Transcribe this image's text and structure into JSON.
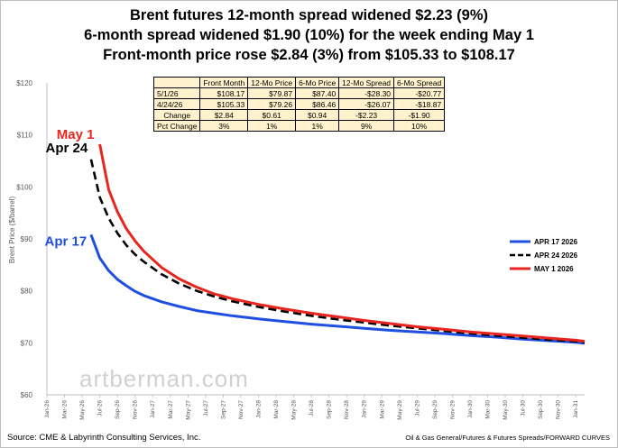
{
  "title_lines": [
    "Brent futures 12-month spread widened $2.23 (9%)",
    "6-month spread widened $1.90 (10%) for the week ending May 1",
    "Front-month price rose $2.84 (3%) from $105.33 to $108.17"
  ],
  "table": {
    "headers": [
      "",
      "Front Month",
      "12-Mo Price",
      "6-Mo Price",
      "12-Mo Spread",
      "6-Mo Spread"
    ],
    "rows": [
      [
        "5/1/26",
        "$108.17",
        "$79.87",
        "$87.40",
        "-$28.30",
        "-$20.77"
      ],
      [
        "4/24/26",
        "$105.33",
        "$79.26",
        "$86.46",
        "-$26.07",
        "-$18.87"
      ],
      [
        "Change",
        "$2.84",
        "$0.61",
        "$0.94",
        "-$2.23",
        "-$1.90"
      ],
      [
        "Pct Change",
        "3%",
        "1%",
        "1%",
        "9%",
        "10%"
      ]
    ]
  },
  "watermark": "artberman.com",
  "source": "Source: CME & Labyrinth Consulting Services, Inc.",
  "path_note": "Oil & Gas General/Futures & Futures Spreads/FORWARD CURVES",
  "chart_data": {
    "type": "line",
    "ylabel": "Brent Price ($/barrel)",
    "ylim": [
      60,
      120
    ],
    "yticks": [
      "$60",
      "$70",
      "$80",
      "$90",
      "$100",
      "$110",
      "$120"
    ],
    "x_tick_labels": [
      "Jan-26",
      "Mar-26",
      "May-26",
      "Jul-26",
      "Sep-26",
      "Nov-26",
      "Jan-27",
      "Mar-27",
      "May-27",
      "Jul-27",
      "Sep-27",
      "Nov-27",
      "Jan-28",
      "Mar-28",
      "May-28",
      "Jul-28",
      "Sep-28",
      "Nov-28",
      "Jan-29",
      "Mar-29",
      "May-29",
      "Jul-29",
      "Sep-29",
      "Nov-29",
      "Jan-30",
      "Mar-30",
      "May-30",
      "Jul-30",
      "Sep-30",
      "Nov-30",
      "Jan-31"
    ],
    "x_first": "2026-01",
    "x_last": "2031-02",
    "grid": false,
    "legend_position": "right",
    "series": [
      {
        "name": "APR 17 2026",
        "curve_label": "Apr 17",
        "color": "#1f4fe0",
        "dash": false,
        "points": [
          [
            "2026-06",
            90.8
          ],
          [
            "2026-07",
            86.3
          ],
          [
            "2026-08",
            83.9
          ],
          [
            "2026-09",
            82.2
          ],
          [
            "2026-10",
            81.0
          ],
          [
            "2026-11",
            79.9
          ],
          [
            "2026-12",
            79.1
          ],
          [
            "2027-02",
            77.9
          ],
          [
            "2027-04",
            77.0
          ],
          [
            "2027-06",
            76.2
          ],
          [
            "2027-08",
            75.7
          ],
          [
            "2027-10",
            75.2
          ],
          [
            "2028-01",
            74.6
          ],
          [
            "2028-04",
            74.1
          ],
          [
            "2028-07",
            73.6
          ],
          [
            "2028-10",
            73.2
          ],
          [
            "2029-01",
            72.8
          ],
          [
            "2029-04",
            72.4
          ],
          [
            "2029-07",
            72.1
          ],
          [
            "2029-10",
            71.8
          ],
          [
            "2030-01",
            71.4
          ],
          [
            "2030-04",
            71.1
          ],
          [
            "2030-07",
            70.7
          ],
          [
            "2030-10",
            70.4
          ],
          [
            "2031-01",
            70.1
          ],
          [
            "2031-02",
            69.9
          ]
        ]
      },
      {
        "name": "APR 24 2026",
        "curve_label": "Apr 24",
        "color": "#000000",
        "dash": true,
        "points": [
          [
            "2026-06",
            105.3
          ],
          [
            "2026-07",
            98.0
          ],
          [
            "2026-08",
            94.0
          ],
          [
            "2026-09",
            91.1
          ],
          [
            "2026-10",
            88.8
          ],
          [
            "2026-11",
            87.0
          ],
          [
            "2026-12",
            85.6
          ],
          [
            "2027-02",
            83.2
          ],
          [
            "2027-04",
            81.4
          ],
          [
            "2027-06",
            80.0
          ],
          [
            "2027-08",
            78.9
          ],
          [
            "2027-10",
            78.0
          ],
          [
            "2028-01",
            76.9
          ],
          [
            "2028-04",
            76.0
          ],
          [
            "2028-07",
            75.2
          ],
          [
            "2028-10",
            74.5
          ],
          [
            "2029-01",
            73.9
          ],
          [
            "2029-04",
            73.3
          ],
          [
            "2029-07",
            72.8
          ],
          [
            "2029-10",
            72.3
          ],
          [
            "2030-01",
            71.8
          ],
          [
            "2030-04",
            71.4
          ],
          [
            "2030-07",
            71.0
          ],
          [
            "2030-10",
            70.6
          ],
          [
            "2031-01",
            70.3
          ],
          [
            "2031-02",
            70.1
          ]
        ]
      },
      {
        "name": "MAY 1 2026",
        "curve_label": "May 1",
        "color": "#e8251f",
        "dash": false,
        "points": [
          [
            "2026-07",
            108.2
          ],
          [
            "2026-08",
            99.5
          ],
          [
            "2026-09",
            95.2
          ],
          [
            "2026-10",
            92.0
          ],
          [
            "2026-11",
            89.6
          ],
          [
            "2026-12",
            87.6
          ],
          [
            "2027-02",
            84.5
          ],
          [
            "2027-04",
            82.3
          ],
          [
            "2027-06",
            80.7
          ],
          [
            "2027-08",
            79.4
          ],
          [
            "2027-10",
            78.5
          ],
          [
            "2028-01",
            77.4
          ],
          [
            "2028-04",
            76.5
          ],
          [
            "2028-07",
            75.7
          ],
          [
            "2028-10",
            75.0
          ],
          [
            "2029-01",
            74.3
          ],
          [
            "2029-04",
            73.7
          ],
          [
            "2029-07",
            73.1
          ],
          [
            "2029-10",
            72.6
          ],
          [
            "2030-01",
            72.1
          ],
          [
            "2030-04",
            71.7
          ],
          [
            "2030-07",
            71.3
          ],
          [
            "2030-10",
            70.9
          ],
          [
            "2031-01",
            70.5
          ],
          [
            "2031-02",
            70.3
          ]
        ]
      }
    ]
  }
}
